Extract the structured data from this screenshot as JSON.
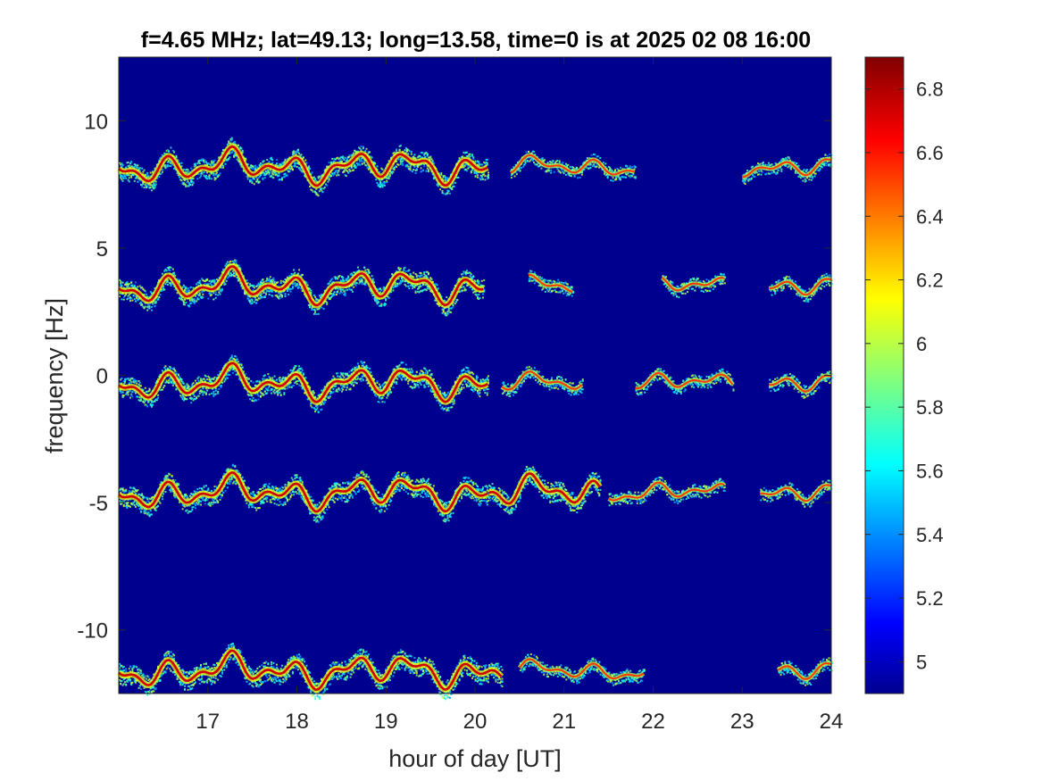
{
  "chart_data": {
    "type": "heatmap",
    "title": "f=4.65 MHz;  lat=49.13; long=13.58, time=0 is at 2025 02 08 16:00",
    "xlabel": "hour of day [UT]",
    "ylabel": "frequency [Hz]",
    "xlim": [
      16,
      24
    ],
    "ylim": [
      -12.5,
      12.5
    ],
    "xticks": [
      17,
      18,
      19,
      20,
      21,
      22,
      23,
      24
    ],
    "yticks": [
      -10,
      -5,
      0,
      5,
      10
    ],
    "colorbar": {
      "colormap": "jet",
      "clim": [
        4.9,
        6.9
      ],
      "ticks": [
        5,
        5.2,
        5.4,
        5.6,
        5.8,
        6,
        6.2,
        6.4,
        6.6,
        6.8
      ]
    },
    "background_value": 4.95,
    "traces": [
      {
        "offset_hz": 8.2,
        "segments": [
          [
            16.0,
            20.15
          ],
          [
            20.4,
            21.8
          ],
          [
            23.0,
            24.0
          ]
        ]
      },
      {
        "offset_hz": 3.5,
        "segments": [
          [
            16.0,
            20.1
          ],
          [
            20.6,
            21.1
          ],
          [
            22.1,
            22.8
          ],
          [
            23.3,
            24.0
          ]
        ]
      },
      {
        "offset_hz": -0.3,
        "segments": [
          [
            16.0,
            20.15
          ],
          [
            20.3,
            21.2
          ],
          [
            21.8,
            22.9
          ],
          [
            23.3,
            24.0
          ]
        ]
      },
      {
        "offset_hz": -4.6,
        "segments": [
          [
            16.0,
            20.15
          ],
          [
            20.15,
            21.4
          ],
          [
            21.5,
            22.8
          ],
          [
            23.2,
            24.0
          ]
        ]
      },
      {
        "offset_hz": -11.6,
        "segments": [
          [
            16.0,
            20.3
          ],
          [
            20.5,
            21.9
          ],
          [
            23.4,
            24.0
          ]
        ]
      }
    ]
  }
}
